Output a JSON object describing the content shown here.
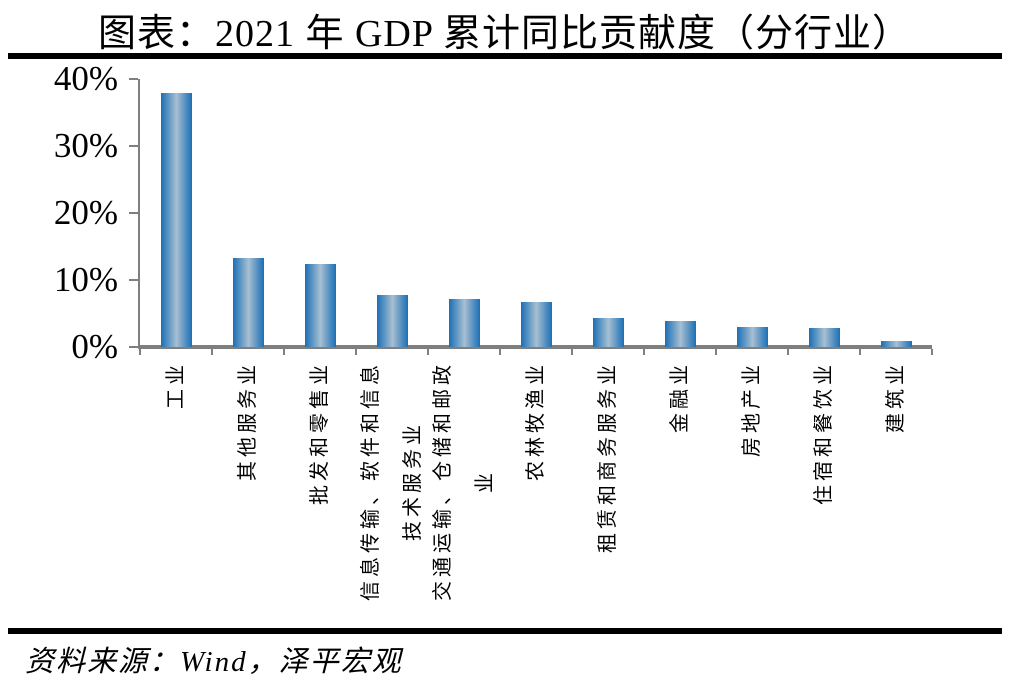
{
  "title": "图表：2021 年 GDP 累计同比贡献度（分行业）",
  "source": "资料来源：Wind，泽平宏观",
  "chart_data": {
    "type": "bar",
    "title": "2021 年 GDP 累计同比贡献度（分行业）",
    "categories": [
      "工业",
      "其他服务业",
      "批发和零售业",
      "信息传输、软件和信息\n技术服务业",
      "交通运输、仓储和邮政\n业",
      "农林牧渔业",
      "租赁和商务服务业",
      "金融业",
      "房地产业",
      "住宿和餐饮业",
      "建筑业"
    ],
    "values": [
      37.9,
      13.3,
      12.4,
      7.8,
      7.2,
      6.7,
      4.3,
      3.9,
      3.0,
      2.8,
      0.9
    ],
    "unit": "%",
    "xlabel": "",
    "ylabel": "",
    "ylim": [
      0,
      40
    ],
    "yticks_top_down": [
      "40%",
      "30%",
      "20%",
      "10%",
      "0%"
    ],
    "grid": false,
    "legend": "none",
    "colors": {
      "bar_edge": "#1a6fb5",
      "bar_mid": "#a7bfd2",
      "axis": "#7f7f7f",
      "text": "#000000"
    }
  }
}
